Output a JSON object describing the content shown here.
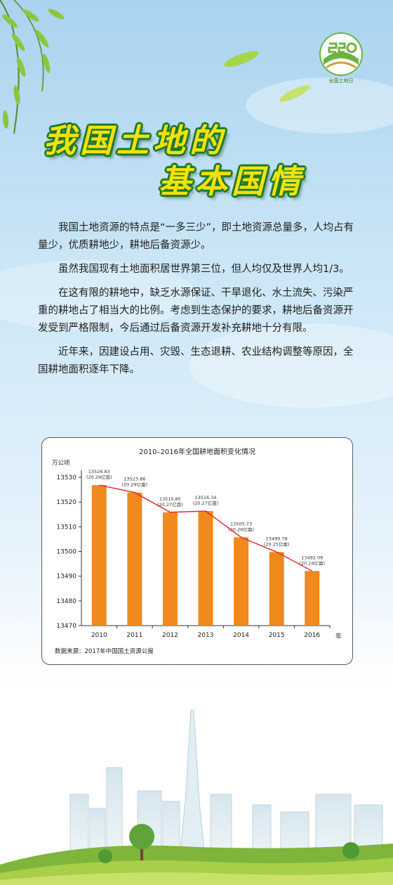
{
  "logo": {
    "text": "全国土地日"
  },
  "title": {
    "line1": "我国土地的",
    "line2": "基本国情"
  },
  "paragraphs": [
    "我国土地资源的特点是“一多三少”，即土地资源总量多，人均占有量少，优质耕地少，耕地后备资源少。",
    "虽然我国现有土地面积居世界第三位，但人均仅及世界人均1/3。",
    "在这有限的耕地中，缺乏水源保证、干旱退化、水土流失、污染严重的耕地占了相当大的比例。考虑到生态保护的要求，耕地后备资源开发受到严格限制，今后通过后备资源开发补充耕地十分有限。",
    "近年来，因建设占用、灾毁、生态退耕、农业结构调整等原因，全国耕地面积逐年下降。"
  ],
  "chart_data": {
    "type": "bar",
    "title": "2010–2016年全国耕地面积变化情况",
    "ylabel": "万公顷",
    "xlabel": "年",
    "categories": [
      "2010",
      "2011",
      "2012",
      "2013",
      "2014",
      "2015",
      "2016"
    ],
    "values": [
      13526.83,
      13523.86,
      13515.85,
      13516.34,
      13505.73,
      13499.78,
      13492.09
    ],
    "value_labels": [
      "13526.83",
      "13523.86",
      "13515.85",
      "13516.34",
      "13505.73",
      "13499.78",
      "13492.09"
    ],
    "sub_labels": [
      "(20.29亿亩)",
      "(20.29亿亩)",
      "(20.27亿亩)",
      "(20.27亿亩)",
      "(20.26亿亩)",
      "(20.25亿亩)",
      "(20.24亿亩)"
    ],
    "ylim": [
      13470,
      13530
    ],
    "yticks": [
      13470,
      13480,
      13490,
      13500,
      13510,
      13520,
      13530
    ],
    "trend_line": true,
    "source": "数据来源：2017年中国国土资源公报",
    "colors": {
      "bar": "#f08a1c",
      "line": "#e3242b",
      "axis": "#333333"
    }
  }
}
